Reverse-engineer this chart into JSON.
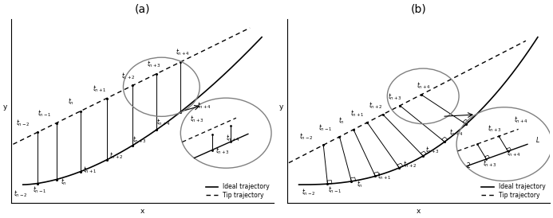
{
  "fig_width": 6.93,
  "fig_height": 2.74,
  "dpi": 100,
  "background_color": "#ffffff",
  "label_fontsize": 5.5,
  "title_fontsize": 10,
  "legend_solid": "Ideal trajectory",
  "legend_dashed": "Tip trajectory",
  "panel_a_title": "(a)",
  "panel_b_title": "(b)"
}
